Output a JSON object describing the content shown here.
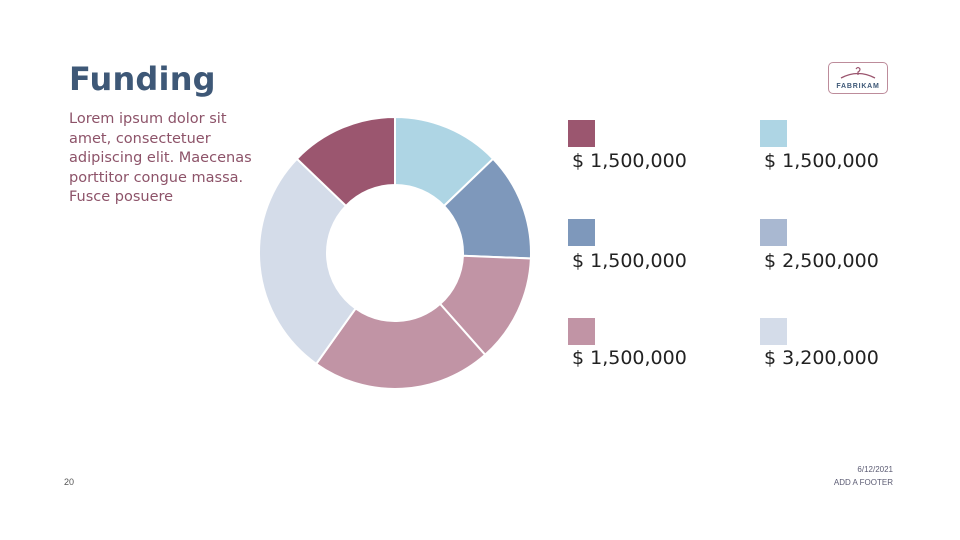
{
  "slide": {
    "title": "Funding",
    "body": "Lorem ipsum dolor sit amet, consectetuer adipiscing elit. Maecenas porttitor congue massa. Fusce posuere",
    "logo_text": "FABRIKAM",
    "page_number": "20",
    "date": "6/12/2021",
    "footer": "ADD A FOOTER"
  },
  "colors": {
    "title": "#3e5877",
    "body": "#8d5369"
  },
  "chart_data": {
    "type": "pie",
    "hole": 0.5,
    "values": [
      1.5,
      1.5,
      1.5,
      2.5,
      3.2,
      1.5
    ],
    "slice_colors": [
      "#aed5e4",
      "#7e98bb",
      "#c194a5",
      "#c194a5",
      "#d4dce9",
      "#9b566f"
    ],
    "legend": [
      {
        "color": "#9b566f",
        "label": "$ 1,500,000"
      },
      {
        "color": "#aed5e4",
        "label": "$ 1,500,000"
      },
      {
        "color": "#7e98bb",
        "label": "$ 1,500,000"
      },
      {
        "color": "#a9b8d1",
        "label": "$ 2,500,000"
      },
      {
        "color": "#c194a5",
        "label": "$ 1,500,000"
      },
      {
        "color": "#d4dce9",
        "label": "$ 3,200,000"
      }
    ]
  }
}
